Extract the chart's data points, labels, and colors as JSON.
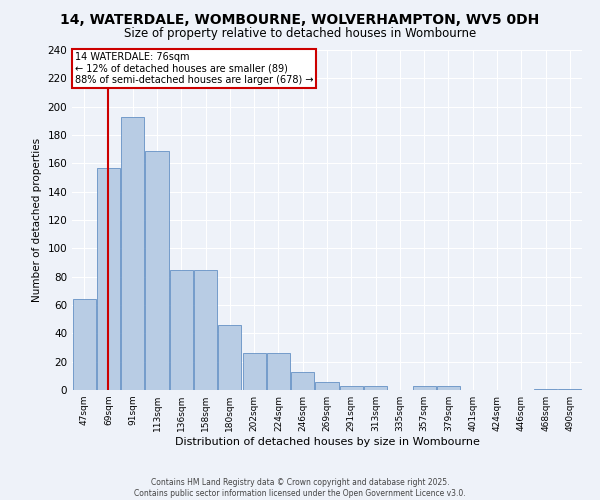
{
  "title": "14, WATERDALE, WOMBOURNE, WOLVERHAMPTON, WV5 0DH",
  "subtitle": "Size of property relative to detached houses in Wombourne",
  "xlabel": "Distribution of detached houses by size in Wombourne",
  "ylabel": "Number of detached properties",
  "categories": [
    "47sqm",
    "69sqm",
    "91sqm",
    "113sqm",
    "136sqm",
    "158sqm",
    "180sqm",
    "202sqm",
    "224sqm",
    "246sqm",
    "269sqm",
    "291sqm",
    "313sqm",
    "335sqm",
    "357sqm",
    "379sqm",
    "401sqm",
    "424sqm",
    "446sqm",
    "468sqm",
    "490sqm"
  ],
  "values": [
    64,
    157,
    193,
    169,
    85,
    85,
    46,
    26,
    26,
    13,
    6,
    3,
    3,
    0,
    3,
    3,
    0,
    0,
    0,
    1,
    1
  ],
  "bar_color": "#b8cce4",
  "bar_edge_color": "#4f81bd",
  "vline_x": 1,
  "vline_color": "#cc0000",
  "annotation_label": "14 WATERDALE: 76sqm",
  "annotation_line1": "← 12% of detached houses are smaller (89)",
  "annotation_line2": "88% of semi-detached houses are larger (678) →",
  "annotation_box_color": "#ffffff",
  "annotation_box_edge": "#cc0000",
  "ylim": [
    0,
    240
  ],
  "yticks": [
    0,
    20,
    40,
    60,
    80,
    100,
    120,
    140,
    160,
    180,
    200,
    220,
    240
  ],
  "footer_line1": "Contains HM Land Registry data © Crown copyright and database right 2025.",
  "footer_line2": "Contains public sector information licensed under the Open Government Licence v3.0.",
  "background_color": "#eef2f9",
  "title_fontsize": 10,
  "subtitle_fontsize": 8.5
}
